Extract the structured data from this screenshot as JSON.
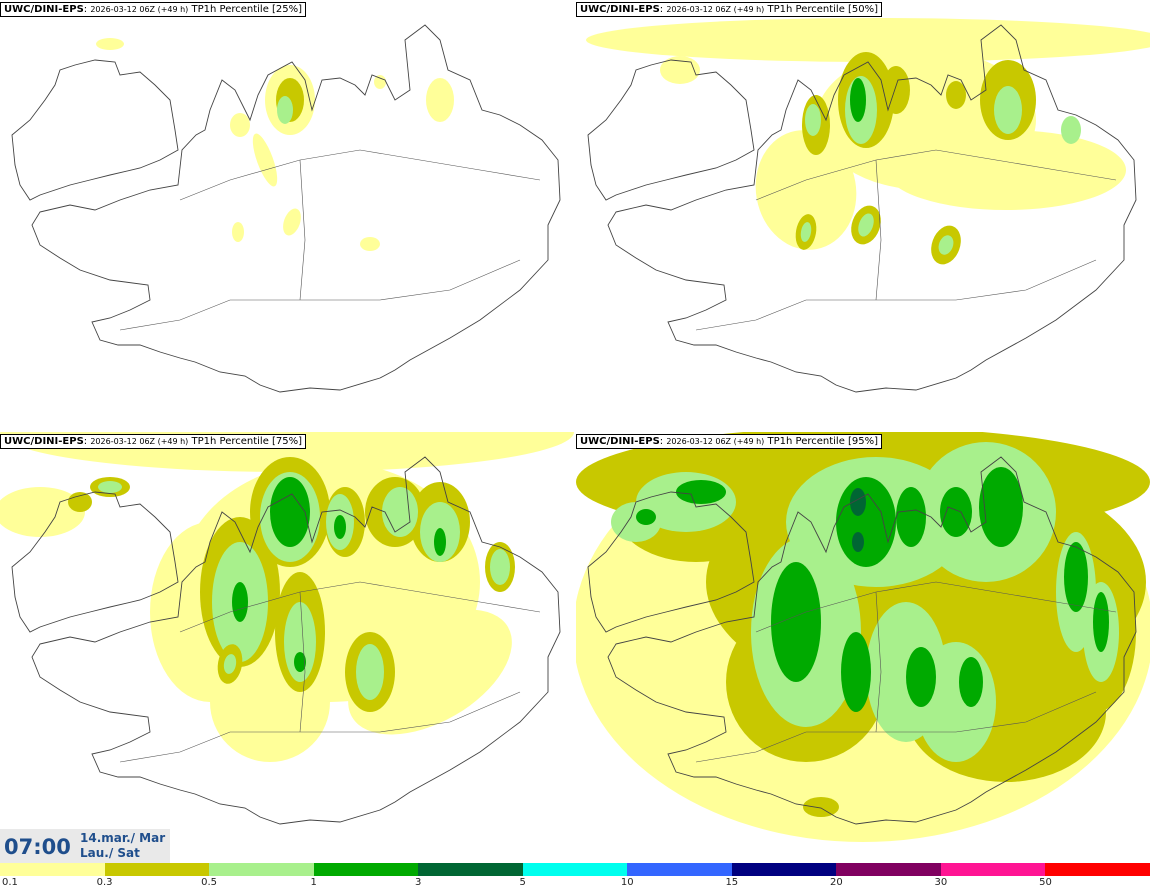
{
  "panels": [
    {
      "source": "UWC/DINI-EPS",
      "run": "2026-03-12 06Z (+49 h)",
      "field": "TP1h Percentile [25%]",
      "level": 1
    },
    {
      "source": "UWC/DINI-EPS",
      "run": "2026-03-12 06Z (+49 h)",
      "field": "TP1h Percentile [50%]",
      "level": 2
    },
    {
      "source": "UWC/DINI-EPS",
      "run": "2026-03-12 06Z (+49 h)",
      "field": "TP1h Percentile [75%]",
      "level": 3
    },
    {
      "source": "UWC/DINI-EPS",
      "run": "2026-03-12 06Z (+49 h)",
      "field": "TP1h Percentile [95%]",
      "level": 4
    }
  ],
  "valid_time": {
    "time": "07:00",
    "date_line1": "14.mar./ Mar",
    "date_line2": "Lau./ Sat"
  },
  "legend": {
    "labels": [
      "0.1",
      "0.3",
      "0.5",
      "1",
      "3",
      "5",
      "10",
      "15",
      "20",
      "30",
      "50"
    ],
    "colors": [
      "#ffff99",
      "#c8c800",
      "#a8f08c",
      "#00aa00",
      "#006633",
      "#00ffee",
      "#3366ff",
      "#000080",
      "#800060",
      "#ff1493",
      "#ff0000"
    ]
  }
}
